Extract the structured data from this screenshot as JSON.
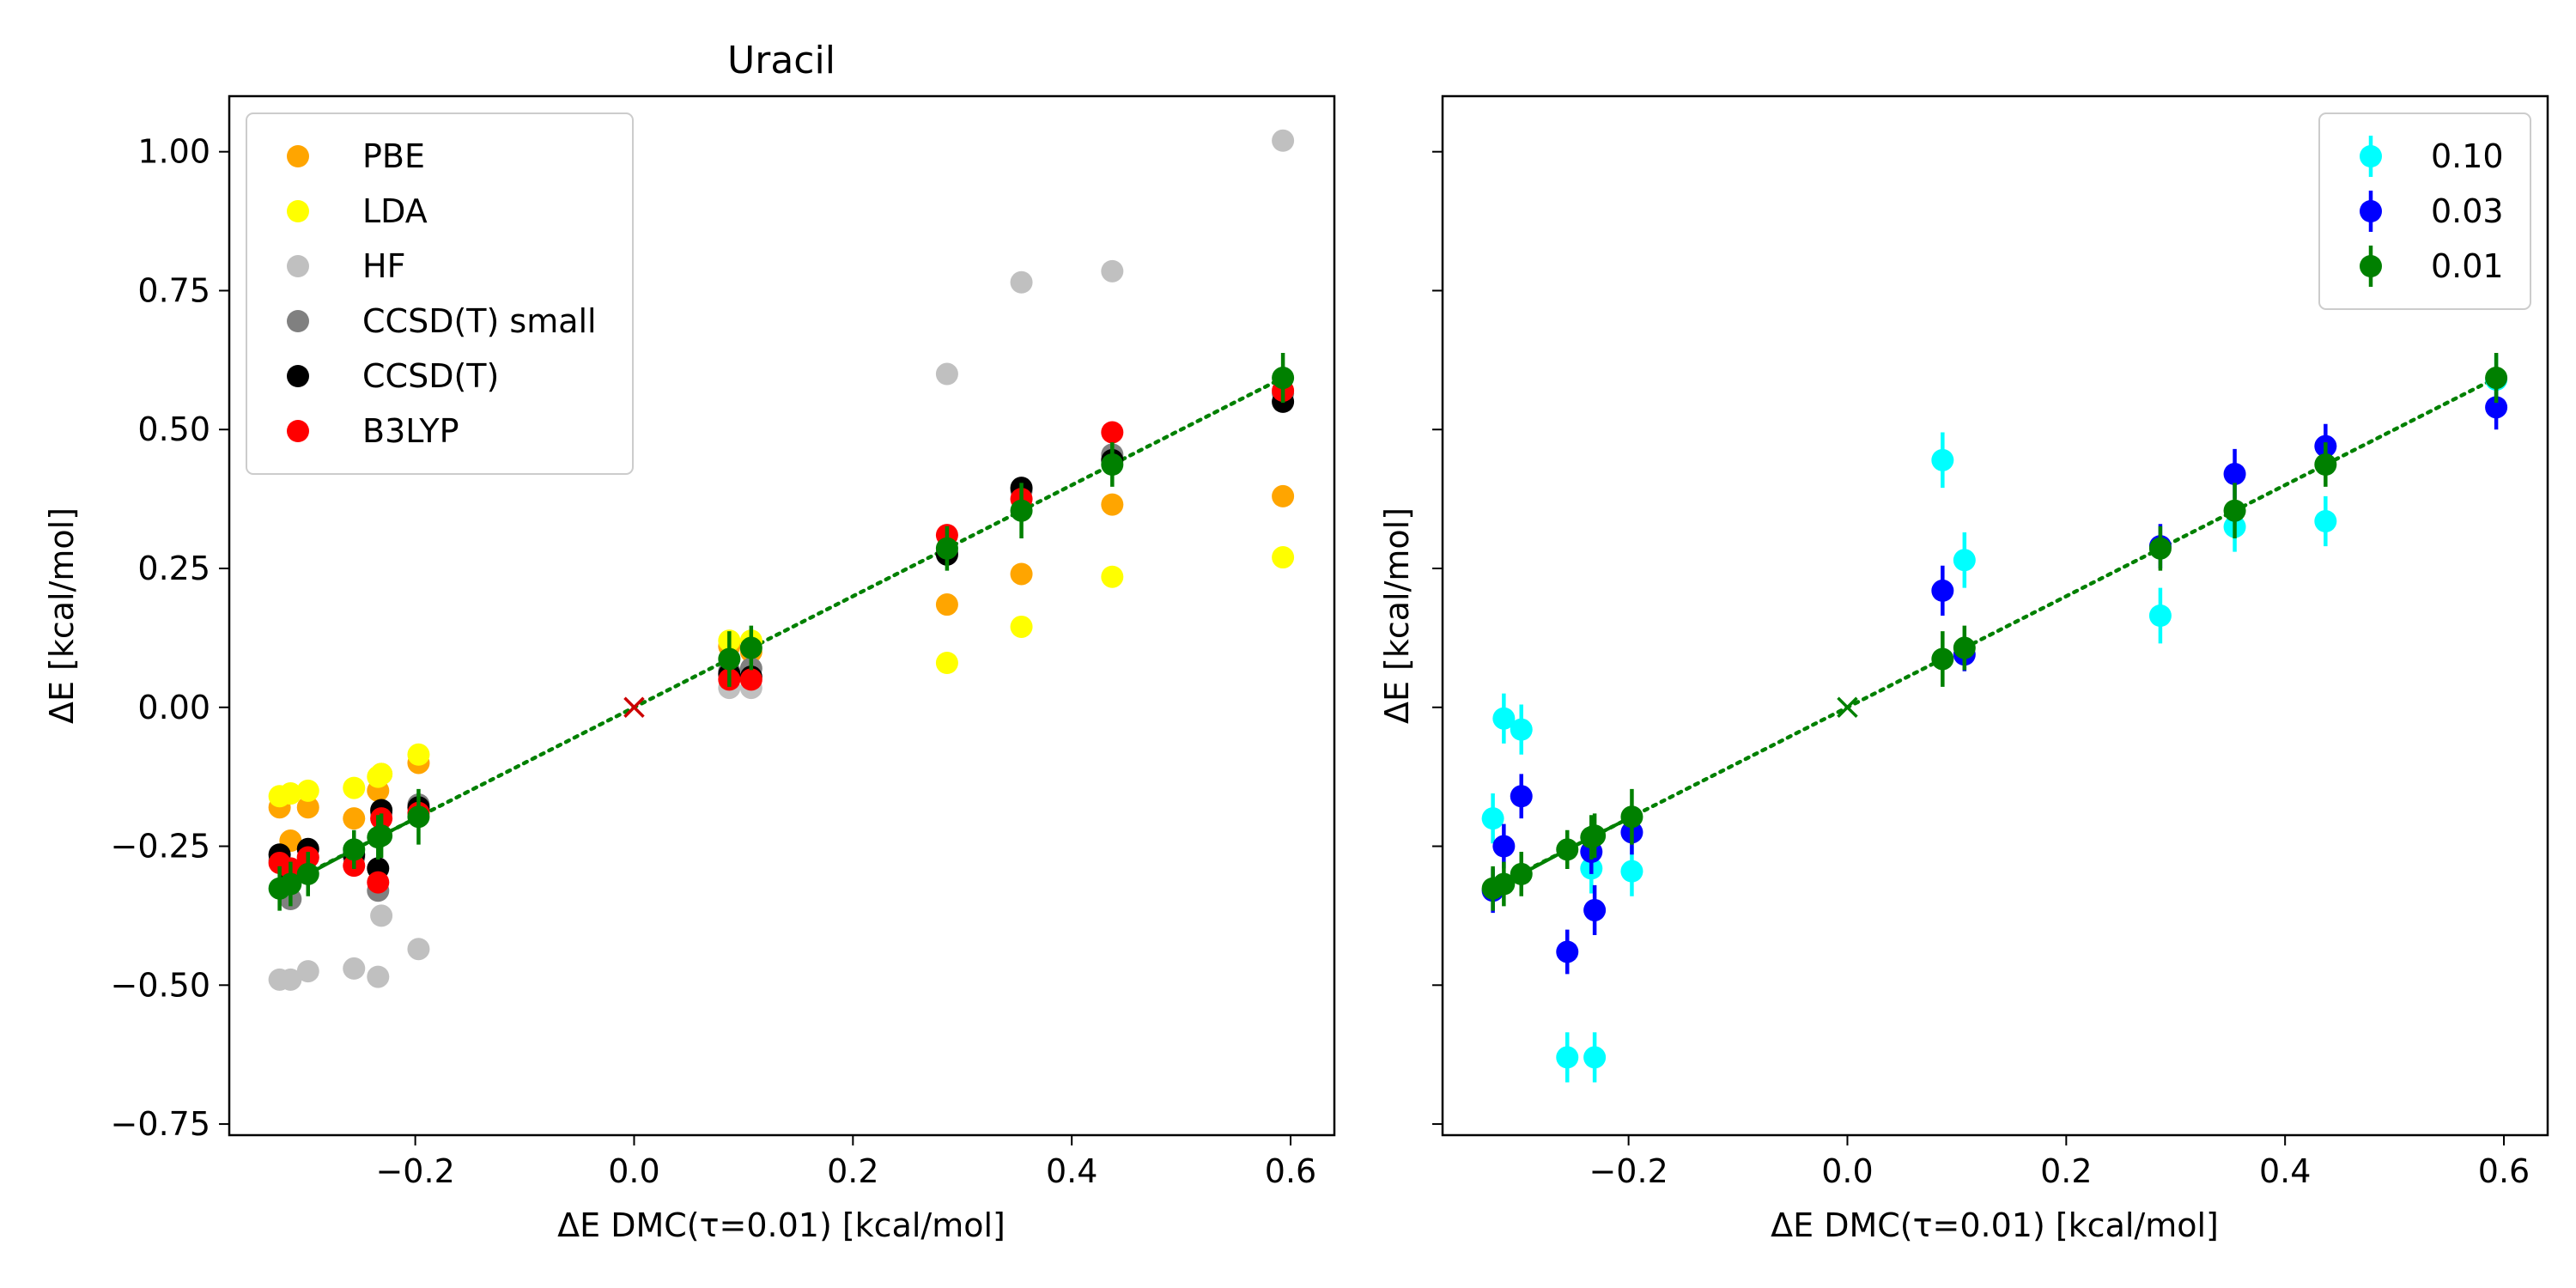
{
  "chart_data": [
    {
      "type": "scatter",
      "title": "Uracil",
      "xlabel": "ΔE DMC(τ=0.01) [kcal/mol]",
      "ylabel": "ΔE [kcal/mol]",
      "xlim": [
        -0.37,
        0.64
      ],
      "ylim": [
        -0.77,
        1.1
      ],
      "xticks": [
        "−0.2",
        "0.0",
        "0.2",
        "0.4",
        "0.6"
      ],
      "yticks": [
        "−0.75",
        "−0.50",
        "−0.25",
        "0.00",
        "0.25",
        "0.50",
        "0.75",
        "1.00"
      ],
      "legend_position": "top-left",
      "x": [
        -0.324,
        -0.314,
        -0.298,
        -0.256,
        -0.234,
        -0.231,
        -0.197,
        0.087,
        0.107,
        0.286,
        0.354,
        0.437,
        0.593
      ],
      "series": [
        {
          "name": "PBE",
          "color": "#ffa500",
          "values": [
            -0.18,
            -0.24,
            -0.18,
            -0.2,
            -0.15,
            -0.12,
            -0.1,
            0.11,
            0.1,
            0.185,
            0.24,
            0.365,
            0.38
          ]
        },
        {
          "name": "LDA",
          "color": "#ffff00",
          "values": [
            -0.16,
            -0.155,
            -0.15,
            -0.145,
            -0.125,
            -0.12,
            -0.085,
            0.12,
            0.12,
            0.08,
            0.145,
            0.235,
            0.27
          ]
        },
        {
          "name": "HF",
          "color": "#c0c0c0",
          "values": [
            -0.49,
            -0.49,
            -0.475,
            -0.47,
            -0.485,
            -0.375,
            -0.435,
            0.035,
            0.035,
            0.6,
            0.765,
            0.785,
            1.02
          ]
        },
        {
          "name": "CCSD(T) small",
          "color": "#808080",
          "values": [
            -0.275,
            -0.345,
            -0.27,
            -0.27,
            -0.33,
            -0.19,
            -0.175,
            0.065,
            0.07,
            0.28,
            0.39,
            0.455,
            0.565
          ]
        },
        {
          "name": "CCSD(T)",
          "color": "#000000",
          "values": [
            -0.265,
            -0.3,
            -0.255,
            -0.265,
            -0.29,
            -0.185,
            -0.18,
            0.06,
            0.055,
            0.275,
            0.395,
            0.445,
            0.55
          ]
        },
        {
          "name": "B3LYP",
          "color": "#ff0000",
          "values": [
            -0.28,
            -0.29,
            -0.27,
            -0.285,
            -0.315,
            -0.2,
            -0.19,
            0.05,
            0.05,
            0.31,
            0.375,
            0.495,
            0.57
          ]
        },
        {
          "name": "DMC τ=0.01",
          "color": "#008000",
          "values": [
            -0.326,
            -0.318,
            -0.3,
            -0.256,
            -0.234,
            -0.231,
            -0.197,
            0.087,
            0.107,
            0.286,
            0.354,
            0.437,
            0.593
          ],
          "errors": [
            0.04,
            0.04,
            0.04,
            0.035,
            0.04,
            0.04,
            0.05,
            0.05,
            0.04,
            0.04,
            0.05,
            0.04,
            0.045
          ]
        }
      ],
      "fit_line": {
        "color": "#008000",
        "style": "dotted",
        "x": [
          -0.324,
          0.593
        ],
        "y": [
          -0.324,
          0.593
        ]
      },
      "origin_marker": {
        "x": 0,
        "y": 0,
        "color": "#cc0000",
        "marker": "x"
      }
    },
    {
      "type": "scatter",
      "title": "",
      "xlabel": "ΔE DMC(τ=0.01) [kcal/mol]",
      "ylabel": "ΔE [kcal/mol]",
      "xlim": [
        -0.37,
        0.64
      ],
      "ylim": [
        -0.77,
        1.1
      ],
      "xticks": [
        "−0.2",
        "0.0",
        "0.2",
        "0.4",
        "0.6"
      ],
      "legend_position": "top-right",
      "x": [
        -0.324,
        -0.314,
        -0.298,
        -0.256,
        -0.234,
        -0.231,
        -0.197,
        0.087,
        0.107,
        0.286,
        0.354,
        0.437,
        0.593
      ],
      "series": [
        {
          "name": "0.10",
          "color": "#00ffff",
          "values": [
            -0.2,
            -0.02,
            -0.04,
            -0.63,
            -0.29,
            -0.63,
            -0.295,
            0.445,
            0.265,
            0.165,
            0.325,
            0.335,
            0.59
          ],
          "errors": [
            0.045,
            0.045,
            0.045,
            0.045,
            0.045,
            0.045,
            0.045,
            0.05,
            0.05,
            0.05,
            0.045,
            0.045,
            0.045
          ]
        },
        {
          "name": "0.03",
          "color": "#0000ff",
          "values": [
            -0.33,
            -0.25,
            -0.16,
            -0.44,
            -0.26,
            -0.365,
            -0.225,
            0.21,
            0.095,
            0.29,
            0.42,
            0.47,
            0.54
          ],
          "errors": [
            0.04,
            0.04,
            0.04,
            0.04,
            0.04,
            0.045,
            0.04,
            0.045,
            0.03,
            0.04,
            0.045,
            0.04,
            0.04
          ]
        },
        {
          "name": "0.01",
          "color": "#008000",
          "values": [
            -0.326,
            -0.318,
            -0.3,
            -0.256,
            -0.234,
            -0.231,
            -0.197,
            0.087,
            0.107,
            0.286,
            0.354,
            0.437,
            0.593
          ],
          "errors": [
            0.04,
            0.04,
            0.04,
            0.035,
            0.04,
            0.04,
            0.05,
            0.05,
            0.04,
            0.04,
            0.05,
            0.04,
            0.045
          ]
        }
      ],
      "fit_line": {
        "color": "#008000",
        "style": "dotted",
        "x": [
          -0.324,
          0.593
        ],
        "y": [
          -0.324,
          0.593
        ]
      },
      "origin_marker": {
        "x": 0,
        "y": 0,
        "color": "#008000",
        "marker": "x"
      }
    }
  ]
}
